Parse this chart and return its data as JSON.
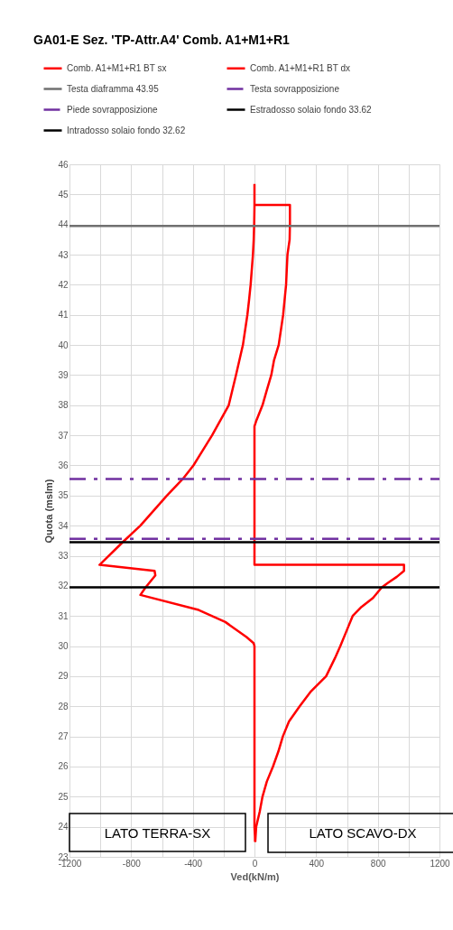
{
  "chart_data": {
    "type": "line",
    "title": "GA01-E Sez. 'TP-Attr.A4' Comb. A1+M1+R1",
    "xlabel": "Ved(kN/m)",
    "ylabel": "Quota (mslm)",
    "series": [
      {
        "name": "Comb. A1+M1+R1 BT sx",
        "color": "#ff0000",
        "x": [
          0,
          0,
          -2,
          -5,
          -10,
          -25,
          -35,
          -46,
          -75,
          -120,
          -167,
          -275,
          -396,
          -465,
          -568,
          -740,
          -855,
          -1005,
          -648,
          -643,
          -706,
          -740,
          -362,
          -189,
          -52,
          -6,
          0,
          0,
          5
        ],
        "values": [
          45.35,
          44.6,
          44,
          43.5,
          43,
          42,
          41.5,
          41,
          40,
          39,
          38,
          37,
          36,
          35.55,
          35,
          34,
          33.45,
          32.7,
          32.5,
          32.35,
          31.95,
          31.7,
          31.2,
          30.8,
          30.3,
          30.1,
          30,
          24,
          23.5
        ]
      },
      {
        "name": "Comb. A1+M1+R1 BT dx",
        "color": "#ff0000",
        "x": [
          0,
          230,
          230,
          228,
          214,
          205,
          186,
          157,
          127,
          109,
          80,
          52,
          13,
          0,
          0,
          970,
          970,
          923,
          866,
          826,
          769,
          694,
          637,
          597,
          557,
          522,
          465,
          367,
          293,
          224,
          184,
          155,
          120,
          80,
          52,
          34,
          11,
          5
        ],
        "values": [
          44.65,
          44.65,
          44,
          43.5,
          43,
          42,
          41,
          40,
          39.5,
          39,
          38.5,
          38,
          37.5,
          37.3,
          32.7,
          32.7,
          32.5,
          32.3,
          32.1,
          31.95,
          31.6,
          31.3,
          31,
          30.5,
          30,
          29.6,
          29,
          28.5,
          28,
          27.5,
          27,
          26.5,
          26,
          25.5,
          25,
          24.5,
          24,
          23.5
        ]
      }
    ],
    "ref_lines": [
      {
        "axis": "y",
        "value": 43.95,
        "label": "Testa diaframma 43.95",
        "color": "#707070",
        "line_style": "solid"
      },
      {
        "axis": "y",
        "value": 35.55,
        "label": "Testa sovrapposizione",
        "color": "#7030a0",
        "line_style": "dashed"
      },
      {
        "axis": "y",
        "value": 33.56,
        "label": "Piede sovrapposizione",
        "color": "#7030a0",
        "line_style": "dashed"
      },
      {
        "axis": "y",
        "value": 33.45,
        "label": "Estradosso solaio fondo 33.62",
        "color": "#000000",
        "line_style": "solid"
      },
      {
        "axis": "y",
        "value": 31.95,
        "label": "Intradosso solaio fondo 32.62",
        "color": "#000000",
        "line_style": "solid"
      }
    ],
    "annotations": [
      "LATO TERRA-SX",
      "LATO SCAVO-DX"
    ],
    "xlim": [
      -1200,
      1200
    ],
    "xticks": [
      -1200,
      {
        "value": -1000,
        "label": null
      },
      -800,
      {
        "value": -600,
        "label": null
      },
      -400,
      {
        "value": -200,
        "label": null
      },
      0,
      {
        "value": 200,
        "label": null
      },
      400,
      {
        "value": 600,
        "label": null
      },
      800,
      {
        "value": 1000,
        "label": null
      },
      {
        "value": 1200,
        "label": "1200"
      }
    ],
    "ylim": [
      23,
      46
    ],
    "yticks": [
      23,
      24,
      25,
      26,
      27,
      28,
      29,
      30,
      31,
      32,
      33,
      34,
      35,
      36,
      37,
      38,
      39,
      40,
      41,
      42,
      43,
      44,
      45,
      46
    ],
    "grid": true,
    "legend": "top",
    "marker": "none",
    "line_style": "solid"
  }
}
